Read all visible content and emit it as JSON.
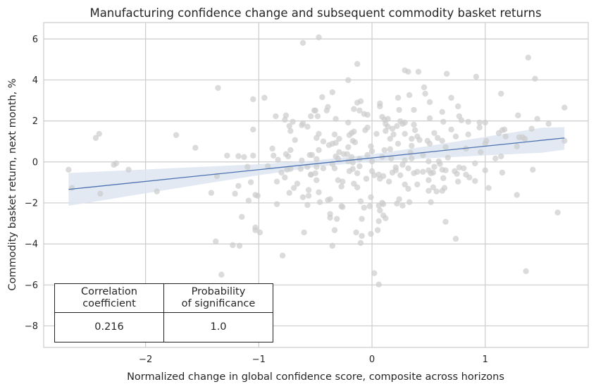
{
  "chart_data": {
    "type": "scatter",
    "title": "Manufacturing confidence change and subsequent commodity basket returns",
    "xlabel": "Normalized change in global confidence score, composite across horizons",
    "ylabel": "Commodity basket return, next month, %",
    "xlim": [
      -2.9,
      1.91
    ],
    "ylim": [
      -9.05,
      6.8
    ],
    "xticks": [
      -2,
      -1,
      0,
      1
    ],
    "xtick_labels": [
      "−2",
      "−1",
      "0",
      "1"
    ],
    "yticks": [
      6,
      4,
      2,
      0,
      -2,
      -4,
      -6,
      -8
    ],
    "ytick_labels": [
      "6",
      "4",
      "2",
      "0",
      "−2",
      "−4",
      "−6",
      "−8"
    ],
    "grid": true,
    "colors": {
      "points": "#cccccc",
      "line": "#4c72b0",
      "band": "#dde5f1"
    },
    "regression": {
      "x": [
        -2.68,
        1.7
      ],
      "y": [
        -1.34,
        1.17
      ],
      "ci_x": [
        -2.68,
        -2,
        -1.5,
        -1,
        -0.5,
        0,
        0.5,
        1,
        1.5,
        1.7
      ],
      "ci_lower": [
        -2.14,
        -1.53,
        -1.08,
        -0.65,
        -0.25,
        0.02,
        0.18,
        0.32,
        0.45,
        0.6
      ],
      "ci_upper": [
        -0.54,
        -0.37,
        -0.24,
        -0.11,
        0.07,
        0.37,
        0.78,
        1.22,
        1.67,
        1.7
      ]
    },
    "points": [
      [
        -2.68,
        -0.38
      ],
      [
        -2.65,
        -1.27
      ],
      [
        -2.44,
        1.17
      ],
      [
        -2.41,
        1.37
      ],
      [
        -2.4,
        -1.55
      ],
      [
        -2.28,
        -0.14
      ],
      [
        -2.26,
        -0.07
      ],
      [
        -2.15,
        -0.38
      ],
      [
        -1.9,
        -1.44
      ],
      [
        -1.73,
        1.31
      ],
      [
        -1.56,
        0.69
      ],
      [
        -1.36,
        3.61
      ],
      [
        -1.37,
        -0.69
      ],
      [
        -1.42,
        -1.51
      ],
      [
        -1.38,
        -3.88
      ],
      [
        -1.33,
        -5.5
      ],
      [
        -1.28,
        0.31
      ],
      [
        -1.23,
        -4.06
      ],
      [
        -1.17,
        -4.09
      ],
      [
        -1.18,
        0.28
      ],
      [
        -1.13,
        0.24
      ],
      [
        -1.05,
        0.31
      ],
      [
        -1.18,
        -1.17
      ],
      [
        -1.21,
        -1.55
      ],
      [
        -1.15,
        -2.68
      ],
      [
        -1.09,
        -1.89
      ],
      [
        -1.07,
        -0.99
      ],
      [
        -1.1,
        -0.24
      ],
      [
        -1.05,
        3.06
      ],
      [
        -0.95,
        3.13
      ],
      [
        -1.05,
        1.58
      ],
      [
        -1.03,
        -1.61
      ],
      [
        -1.01,
        -1.65
      ],
      [
        -1.03,
        -3.33
      ],
      [
        -1.03,
        -3.2
      ],
      [
        -0.99,
        -3.44
      ],
      [
        -0.92,
        -0.21
      ],
      [
        -0.85,
        2.23
      ],
      [
        -0.88,
        0.65
      ],
      [
        -0.87,
        0.31
      ],
      [
        -0.83,
        0.1
      ],
      [
        -0.84,
        -0.96
      ],
      [
        -0.84,
        -2.06
      ],
      [
        -0.8,
        -0.52
      ],
      [
        -0.79,
        -4.57
      ],
      [
        -0.77,
        -0.76
      ],
      [
        -0.76,
        2.27
      ],
      [
        -0.77,
        2.06
      ],
      [
        -0.73,
        1.75
      ],
      [
        -0.72,
        1.51
      ],
      [
        -0.7,
        1.96
      ],
      [
        -0.68,
        1.07
      ],
      [
        -0.72,
        0.58
      ],
      [
        -0.76,
        0.38
      ],
      [
        -0.74,
        0.27
      ],
      [
        -0.75,
        -0.38
      ],
      [
        -0.72,
        -0.34
      ],
      [
        -0.66,
        -1.06
      ],
      [
        -0.69,
        -1.27
      ],
      [
        -0.73,
        -1.51
      ],
      [
        -0.62,
        1.79
      ],
      [
        -0.61,
        1.89
      ],
      [
        -0.57,
        1.72
      ],
      [
        -0.61,
        5.81
      ],
      [
        -0.62,
        0.07
      ],
      [
        -0.63,
        -0.34
      ],
      [
        -0.55,
        0.34
      ],
      [
        -0.57,
        -0.24
      ],
      [
        -0.54,
        -0.62
      ],
      [
        -0.56,
        -1.37
      ],
      [
        -0.61,
        -1.72
      ],
      [
        -0.56,
        -1.65
      ],
      [
        -0.57,
        -2.1
      ],
      [
        -0.6,
        -3.44
      ],
      [
        -0.54,
        2.23
      ],
      [
        -0.51,
        2.51
      ],
      [
        -0.47,
        6.08
      ],
      [
        -0.13,
        4.78
      ],
      [
        -0.21,
        3.99
      ],
      [
        -0.44,
        3.16
      ],
      [
        -0.35,
        3.4
      ],
      [
        -0.5,
        2.51
      ],
      [
        -0.48,
        2.23
      ],
      [
        -0.39,
        2.68
      ],
      [
        -0.4,
        2.51
      ],
      [
        -0.32,
        2.1
      ],
      [
        -0.21,
        1.92
      ],
      [
        -0.16,
        2.58
      ],
      [
        -0.13,
        2.89
      ],
      [
        -0.1,
        2.96
      ],
      [
        -0.11,
        2.51
      ],
      [
        -0.07,
        2.34
      ],
      [
        -0.04,
        2.3
      ],
      [
        -0.47,
        1.37
      ],
      [
        -0.49,
        1.17
      ],
      [
        -0.43,
        1.0
      ],
      [
        -0.33,
        1.34
      ],
      [
        -0.29,
        1.13
      ],
      [
        -0.38,
        0.82
      ],
      [
        -0.35,
        0.89
      ],
      [
        -0.32,
        0.93
      ],
      [
        -0.47,
        0.58
      ],
      [
        -0.21,
        0.72
      ],
      [
        -0.2,
        1.31
      ],
      [
        -0.18,
        1.41
      ],
      [
        -0.16,
        1.48
      ],
      [
        -0.17,
        1.03
      ],
      [
        -0.15,
        0.96
      ],
      [
        -0.06,
        1.55
      ],
      [
        -0.04,
        1.68
      ],
      [
        -0.01,
        0.76
      ],
      [
        0.0,
        0.52
      ],
      [
        -0.04,
        0.34
      ],
      [
        -0.22,
        0.38
      ],
      [
        -0.29,
        0.48
      ],
      [
        -0.32,
        0.27
      ],
      [
        -0.3,
        0.17
      ],
      [
        -0.18,
        0.24
      ],
      [
        -0.17,
        -0.03
      ],
      [
        -0.49,
        0.14
      ],
      [
        -0.49,
        -0.24
      ],
      [
        -0.43,
        -0.31
      ],
      [
        -0.35,
        -0.1
      ],
      [
        -0.33,
        -0.31
      ],
      [
        -0.2,
        -0.45
      ],
      [
        -0.17,
        -0.34
      ],
      [
        -0.11,
        -0.21
      ],
      [
        -0.13,
        -0.55
      ],
      [
        -0.5,
        -0.55
      ],
      [
        -0.54,
        -0.62
      ],
      [
        -0.49,
        -0.89
      ],
      [
        -0.3,
        -0.89
      ],
      [
        -0.26,
        -0.96
      ],
      [
        -0.27,
        -1.2
      ],
      [
        -0.16,
        -1.06
      ],
      [
        -0.13,
        -1.24
      ],
      [
        -0.05,
        -0.82
      ],
      [
        -0.47,
        -1.48
      ],
      [
        -0.46,
        -1.96
      ],
      [
        -0.39,
        -1.86
      ],
      [
        -0.37,
        -1.82
      ],
      [
        -0.27,
        -2.16
      ],
      [
        -0.26,
        -2.2
      ],
      [
        -0.37,
        -2.54
      ],
      [
        -0.37,
        -2.72
      ],
      [
        -0.31,
        -2.78
      ],
      [
        -0.33,
        -3.33
      ],
      [
        -0.35,
        -4.09
      ],
      [
        -0.14,
        -3.44
      ],
      [
        -0.09,
        -3.61
      ],
      [
        -0.1,
        -3.95
      ],
      [
        -0.09,
        -2.78
      ],
      [
        -0.1,
        -1.92
      ],
      [
        -0.07,
        -2.23
      ],
      [
        -0.02,
        -2.16
      ],
      [
        -0.01,
        -1.72
      ],
      [
        -0.01,
        -3.51
      ],
      [
        0.02,
        -5.43
      ],
      [
        0.06,
        -5.98
      ],
      [
        0.05,
        -3.33
      ],
      [
        0.06,
        -2.89
      ],
      [
        0.07,
        -2.37
      ],
      [
        0.09,
        -1.99
      ],
      [
        0.1,
        -2.06
      ],
      [
        0.06,
        -2.13
      ],
      [
        0.1,
        -2.61
      ],
      [
        0.12,
        -2.75
      ],
      [
        0.0,
        -0.45
      ],
      [
        0.02,
        -0.65
      ],
      [
        0.06,
        -0.62
      ],
      [
        0.07,
        -0.82
      ],
      [
        0.1,
        -0.69
      ],
      [
        0.15,
        -0.96
      ],
      [
        0.04,
        1.37
      ],
      [
        0.07,
        2.85
      ],
      [
        0.07,
        2.71
      ],
      [
        0.09,
        2.2
      ],
      [
        0.11,
        2.06
      ],
      [
        0.14,
        2.1
      ],
      [
        0.12,
        1.86
      ],
      [
        0.12,
        1.51
      ],
      [
        0.14,
        1.72
      ],
      [
        0.18,
        1.62
      ],
      [
        0.16,
        1.13
      ],
      [
        0.19,
        1.34
      ],
      [
        0.22,
        1.75
      ],
      [
        0.23,
        3.13
      ],
      [
        0.24,
        2.54
      ],
      [
        0.25,
        1.99
      ],
      [
        0.27,
        1.86
      ],
      [
        0.29,
        1.92
      ],
      [
        0.29,
        1.37
      ],
      [
        0.23,
        0.89
      ],
      [
        0.33,
        3.26
      ],
      [
        0.37,
        2.54
      ],
      [
        0.37,
        1.82
      ],
      [
        0.38,
        1.55
      ],
      [
        0.29,
        4.47
      ],
      [
        0.32,
        4.4
      ],
      [
        0.41,
        4.4
      ],
      [
        0.46,
        3.64
      ],
      [
        0.47,
        3.33
      ],
      [
        0.51,
        2.92
      ],
      [
        0.51,
        2.13
      ],
      [
        0.4,
        1.24
      ],
      [
        0.35,
        1.13
      ],
      [
        0.42,
        1.07
      ],
      [
        0.35,
        0.79
      ],
      [
        0.49,
        1.03
      ],
      [
        0.51,
        0.89
      ],
      [
        0.55,
        1.41
      ],
      [
        0.58,
        1.17
      ],
      [
        0.62,
        1.03
      ],
      [
        0.62,
        2.44
      ],
      [
        0.63,
        1.96
      ],
      [
        0.66,
        4.3
      ],
      [
        0.7,
        3.13
      ],
      [
        0.76,
        2.71
      ],
      [
        0.77,
        2.23
      ],
      [
        0.79,
        2.03
      ],
      [
        0.85,
        1.96
      ],
      [
        0.92,
        4.16
      ],
      [
        0.7,
        1.58
      ],
      [
        0.74,
        1.24
      ],
      [
        0.85,
        1.34
      ],
      [
        0.65,
        0.72
      ],
      [
        0.83,
        0.65
      ],
      [
        0.95,
        1.92
      ],
      [
        1.0,
        1.92
      ],
      [
        0.95,
        1.68
      ],
      [
        1.0,
        0.89
      ],
      [
        1.01,
        1.03
      ],
      [
        0.96,
        0.48
      ],
      [
        1.14,
        3.33
      ],
      [
        1.29,
        2.27
      ],
      [
        1.38,
        5.09
      ],
      [
        1.44,
        4.06
      ],
      [
        1.46,
        2.1
      ],
      [
        1.56,
        1.86
      ],
      [
        1.41,
        1.62
      ],
      [
        1.7,
        2.65
      ],
      [
        1.7,
        1.03
      ],
      [
        1.12,
        1.41
      ],
      [
        1.15,
        1.55
      ],
      [
        1.17,
        1.58
      ],
      [
        1.18,
        1.24
      ],
      [
        1.3,
        1.2
      ],
      [
        1.33,
        1.2
      ],
      [
        1.35,
        1.13
      ],
      [
        1.28,
        0.76
      ],
      [
        1.09,
        0.17
      ],
      [
        1.14,
        0.27
      ],
      [
        1.15,
        -0.52
      ],
      [
        1.0,
        -0.41
      ],
      [
        0.91,
        -0.07
      ],
      [
        1.42,
        -0.38
      ],
      [
        1.28,
        -1.61
      ],
      [
        1.03,
        -1.27
      ],
      [
        0.91,
        -0.93
      ],
      [
        0.86,
        -0.76
      ],
      [
        0.83,
        -0.62
      ],
      [
        0.81,
        -0.31
      ],
      [
        0.77,
        -0.27
      ],
      [
        0.75,
        -0.58
      ],
      [
        0.73,
        -0.45
      ],
      [
        0.76,
        -0.96
      ],
      [
        0.65,
        -0.41
      ],
      [
        0.62,
        -0.38
      ],
      [
        0.63,
        -0.79
      ],
      [
        0.64,
        -1.27
      ],
      [
        0.62,
        -1.41
      ],
      [
        0.57,
        -1.44
      ],
      [
        0.54,
        -1.24
      ],
      [
        0.5,
        -1.41
      ],
      [
        0.52,
        -1.96
      ],
      [
        0.5,
        -0.89
      ],
      [
        0.52,
        -0.55
      ],
      [
        0.54,
        -0.52
      ],
      [
        0.5,
        -0.41
      ],
      [
        0.45,
        -0.48
      ],
      [
        0.55,
        -0.24
      ],
      [
        0.59,
        0.03
      ],
      [
        0.6,
        -0.1
      ],
      [
        0.67,
        0.21
      ],
      [
        0.5,
        0.03
      ],
      [
        0.45,
        0.34
      ],
      [
        0.4,
        -0.48
      ],
      [
        0.37,
        -0.55
      ],
      [
        0.4,
        -1.1
      ],
      [
        0.32,
        -0.31
      ],
      [
        0.27,
        -0.14
      ],
      [
        0.29,
        0.07
      ],
      [
        0.34,
        0.45
      ],
      [
        0.35,
        0.17
      ],
      [
        0.21,
        -0.27
      ],
      [
        0.21,
        -0.41
      ],
      [
        0.18,
        -0.52
      ],
      [
        0.25,
        -0.65
      ],
      [
        0.29,
        -1.1
      ],
      [
        0.32,
        -1.31
      ],
      [
        0.24,
        -1.82
      ],
      [
        0.22,
        -2.03
      ],
      [
        0.27,
        -2.13
      ],
      [
        0.33,
        -1.96
      ],
      [
        0.65,
        -2.92
      ],
      [
        0.74,
        -3.75
      ],
      [
        1.36,
        -5.33
      ],
      [
        1.64,
        -2.47
      ],
      [
        0.16,
        0.62
      ],
      [
        0.11,
        0.58
      ],
      [
        0.09,
        0.24
      ],
      [
        0.17,
        0.17
      ],
      [
        0.0,
        0.03
      ],
      [
        -0.11,
        0.14
      ],
      [
        -0.21,
        0.03
      ],
      [
        -0.25,
        0.38
      ],
      [
        -0.53,
        0.34
      ]
    ],
    "table": {
      "headers": [
        [
          "Correlation",
          "coefficient"
        ],
        [
          "Probability",
          "of significance"
        ]
      ],
      "values": [
        "0.216",
        "1.0"
      ]
    }
  }
}
